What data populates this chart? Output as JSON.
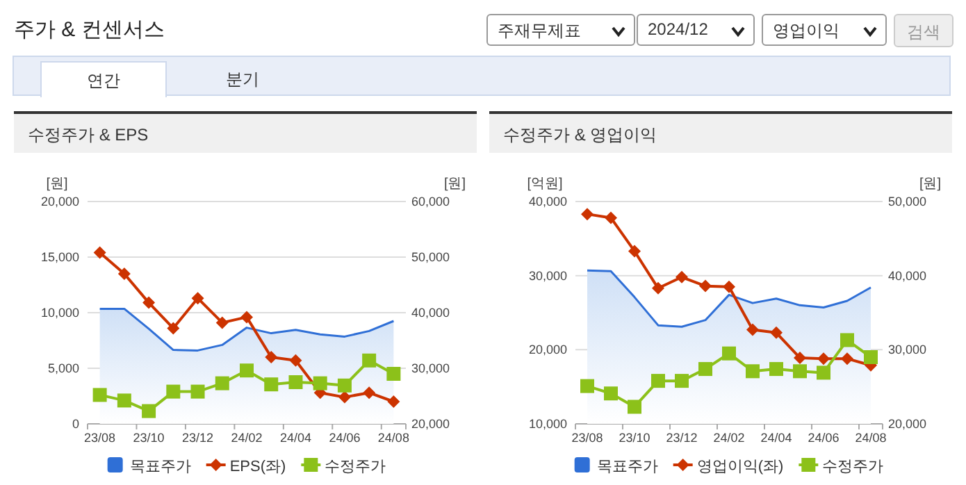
{
  "chart_data": [
    {
      "type": "other",
      "title": "주가 & 컨센서스",
      "annotations": [
        "주재무제표",
        "2024/12",
        "영업이익",
        "검색",
        "연간",
        "분기"
      ]
    },
    {
      "type": "line",
      "title": "수정주가 & EPS",
      "ylabel": "[원]",
      "y2label": "[원]",
      "categories": [
        "23/08",
        null,
        "23/10",
        null,
        "23/12",
        null,
        "24/02",
        null,
        "24/04",
        null,
        "24/06",
        null,
        "24/08"
      ],
      "ylim": [
        0,
        20000
      ],
      "yticks": [
        0,
        {
          "value": 5000,
          "label": "5,000"
        },
        {
          "value": 10000,
          "label": "10,000"
        },
        {
          "value": 15000,
          "label": "15,000"
        },
        {
          "value": 20000,
          "label": "20,000"
        }
      ],
      "y2lim": [
        20000,
        60000
      ],
      "y2ticks": [
        {
          "value": 20000,
          "label": "20,000"
        },
        {
          "value": 30000,
          "label": "30,000"
        },
        {
          "value": 40000,
          "label": "40,000"
        },
        {
          "value": 50000,
          "label": "50,000"
        },
        {
          "value": 60000,
          "label": "60,000"
        }
      ],
      "grid": "y",
      "legend": "bottom",
      "series": [
        {
          "name": "목표주가",
          "type": "area",
          "axis": "y2",
          "color": "#2f6fd6",
          "values": [
            40700,
            40700,
            37100,
            33300,
            33200,
            34200,
            37300,
            36300,
            36900,
            36100,
            35700,
            36700,
            38500
          ]
        },
        {
          "name": "EPS(좌)",
          "type": "line",
          "color": "#cc3300",
          "marker": "diamond",
          "values": [
            15400,
            13500,
            10900,
            8600,
            11300,
            9100,
            9600,
            6000,
            5700,
            2800,
            2400,
            2800,
            2000
          ]
        },
        {
          "name": "수정주가",
          "type": "line",
          "axis": "y2",
          "color": "#8cc11a",
          "marker": "square",
          "values": [
            25200,
            24200,
            22300,
            25800,
            25800,
            27300,
            29600,
            27100,
            27500,
            27300,
            26900,
            31400,
            29000
          ]
        }
      ]
    },
    {
      "type": "line",
      "title": "수정주가 & 영업이익",
      "ylabel": "[억원]",
      "y2label": "[원]",
      "categories": [
        "23/08",
        null,
        "23/10",
        null,
        "23/12",
        null,
        "24/02",
        null,
        "24/04",
        null,
        "24/06",
        null,
        "24/08"
      ],
      "ylim": [
        10000,
        40000
      ],
      "yticks": [
        {
          "value": 10000,
          "label": "10,000"
        },
        {
          "value": 20000,
          "label": "20,000"
        },
        {
          "value": 30000,
          "label": "30,000"
        },
        {
          "value": 40000,
          "label": "40,000"
        }
      ],
      "y2lim": [
        20000,
        50000
      ],
      "y2ticks": [
        {
          "value": 20000,
          "label": "20,000"
        },
        {
          "value": 30000,
          "label": "30,000"
        },
        {
          "value": 40000,
          "label": "40,000"
        },
        {
          "value": 50000,
          "label": "50,000"
        }
      ],
      "grid": "y",
      "legend": "bottom",
      "series": [
        {
          "name": "목표주가",
          "type": "area",
          "axis": "y2",
          "color": "#2f6fd6",
          "values": [
            40700,
            40600,
            37100,
            33300,
            33100,
            34000,
            37400,
            36300,
            36900,
            36000,
            35700,
            36600,
            38400
          ]
        },
        {
          "name": "영업이익(좌)",
          "type": "line",
          "color": "#cc3300",
          "marker": "diamond",
          "values": [
            38300,
            37800,
            33300,
            28300,
            29800,
            28600,
            28500,
            22700,
            22300,
            18900,
            18800,
            18800,
            17900
          ]
        },
        {
          "name": "수정주가",
          "type": "line",
          "axis": "y2",
          "color": "#8cc11a",
          "marker": "square",
          "values": [
            25100,
            24100,
            22300,
            25800,
            25800,
            27400,
            29500,
            27100,
            27400,
            27100,
            26900,
            31300,
            29000
          ]
        }
      ]
    }
  ]
}
